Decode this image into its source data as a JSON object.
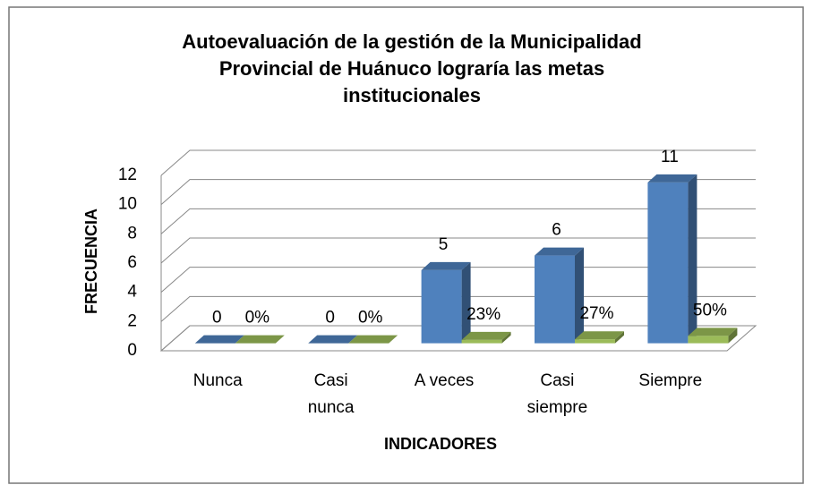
{
  "chart_data": {
    "type": "bar3d",
    "title": [
      "Autoevaluación de la gestión de la Municipalidad",
      "Provincial de Huánuco lograría las metas",
      "institucionales"
    ],
    "y_label": "FRECUENCIA",
    "x_label": "INDICADORES",
    "categories": [
      "Nunca",
      "Casi nunca",
      "A veces",
      "Casi siempre",
      "Siempre"
    ],
    "series": [
      {
        "color": "#4f81bd",
        "values": [
          0,
          0,
          5,
          6,
          11
        ]
      },
      {
        "color": "#9bbb59",
        "values": [
          0,
          0,
          0.23,
          0.27,
          0.5
        ],
        "value_labels": [
          "0%",
          "0%",
          "23%",
          "27%",
          "50%"
        ]
      }
    ],
    "ylim": [
      0,
      12
    ],
    "yticks": [
      0,
      2,
      4,
      6,
      8,
      10,
      12
    ],
    "grid": true
  }
}
